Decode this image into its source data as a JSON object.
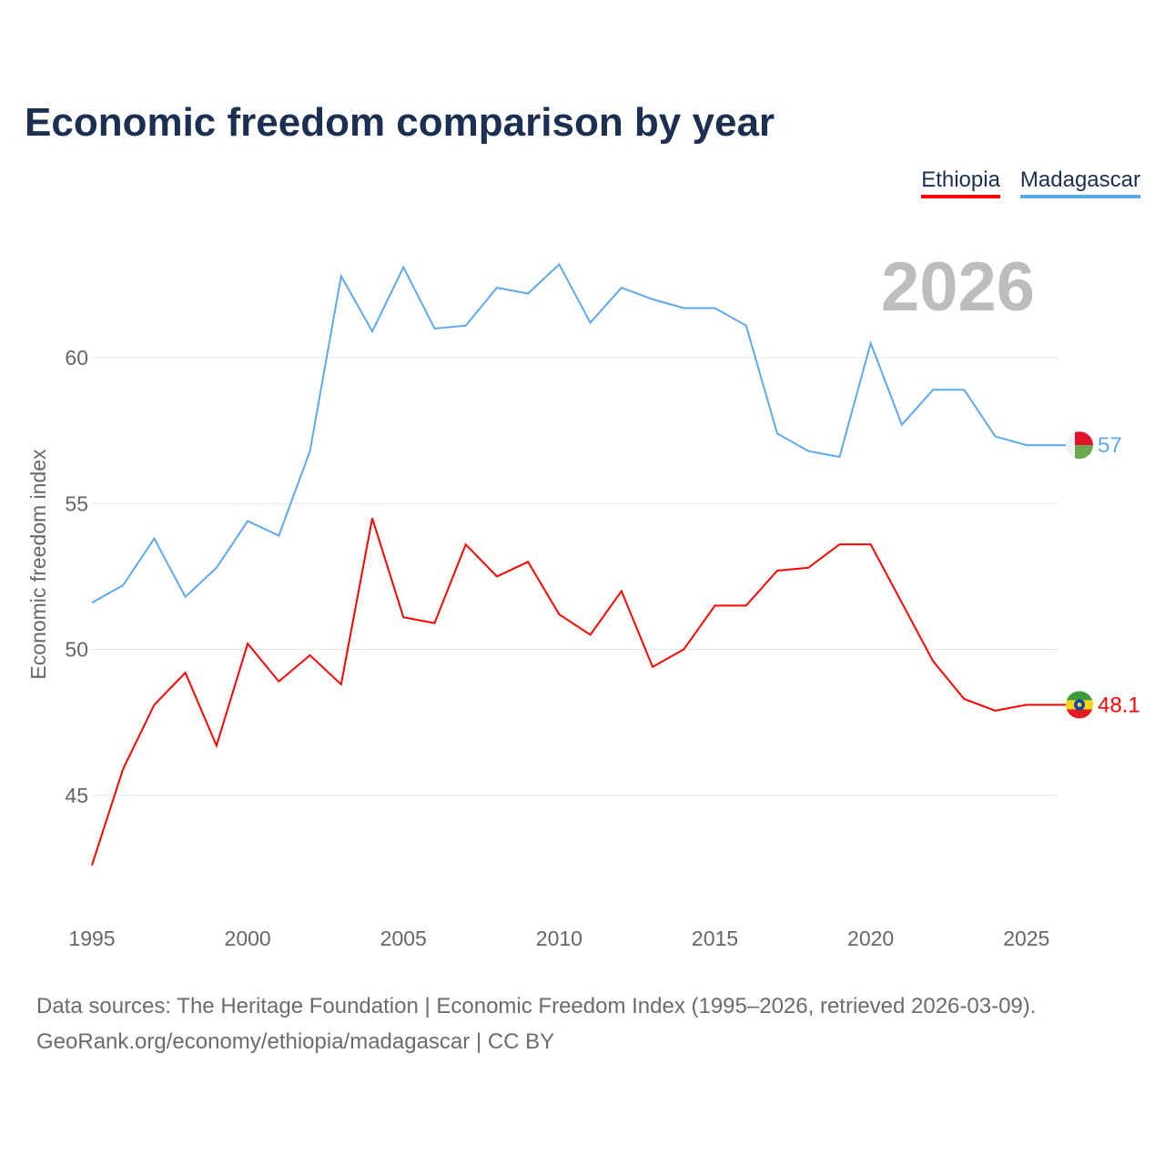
{
  "title": "Economic freedom comparison by year",
  "year_label": "2026",
  "footer": {
    "line1": "Data sources: The Heritage Foundation | Economic Freedom Index (1995–2026, retrieved 2026-03-09).",
    "line2": "GeoRank.org/economy/ethiopia/madagascar | CC BY"
  },
  "chart_data": {
    "type": "line",
    "title": "Economic freedom comparison by year",
    "xlabel": "",
    "ylabel": "Economic freedom index",
    "x": [
      1995,
      1996,
      1997,
      1998,
      1999,
      2000,
      2001,
      2002,
      2003,
      2004,
      2005,
      2006,
      2007,
      2008,
      2009,
      2010,
      2011,
      2012,
      2013,
      2014,
      2015,
      2016,
      2017,
      2018,
      2019,
      2020,
      2021,
      2022,
      2023,
      2024,
      2025,
      2026
    ],
    "xlim": [
      1995,
      2026
    ],
    "ylim": [
      41.5,
      64
    ],
    "xticks": [
      "1995",
      "2000",
      "2005",
      "2010",
      "2015",
      "2020",
      "2025"
    ],
    "yticks": [
      "45",
      "50",
      "55",
      "60"
    ],
    "grid": true,
    "legend_placement": "top-right",
    "series": [
      {
        "name": "Ethiopia",
        "color": "#ff0000",
        "end_label": "48.1",
        "values": [
          42.6,
          45.9,
          48.1,
          49.2,
          46.7,
          50.2,
          48.9,
          49.8,
          48.8,
          54.5,
          51.1,
          50.9,
          53.6,
          52.5,
          53.0,
          51.2,
          50.5,
          52.0,
          49.4,
          50.0,
          51.5,
          51.5,
          52.7,
          52.8,
          53.6,
          53.6,
          51.6,
          49.6,
          48.3,
          47.9,
          48.1,
          48.1
        ]
      },
      {
        "name": "Madagascar",
        "color": "#5ea8ec",
        "end_label": "57",
        "values": [
          51.6,
          52.2,
          53.8,
          51.8,
          52.8,
          54.4,
          53.9,
          56.8,
          62.8,
          60.9,
          63.1,
          61.0,
          61.1,
          62.4,
          62.2,
          63.2,
          61.2,
          62.4,
          62.0,
          61.7,
          61.7,
          61.1,
          57.4,
          56.8,
          56.6,
          60.5,
          57.7,
          58.9,
          58.9,
          57.3,
          57.0,
          57.0
        ]
      }
    ]
  }
}
